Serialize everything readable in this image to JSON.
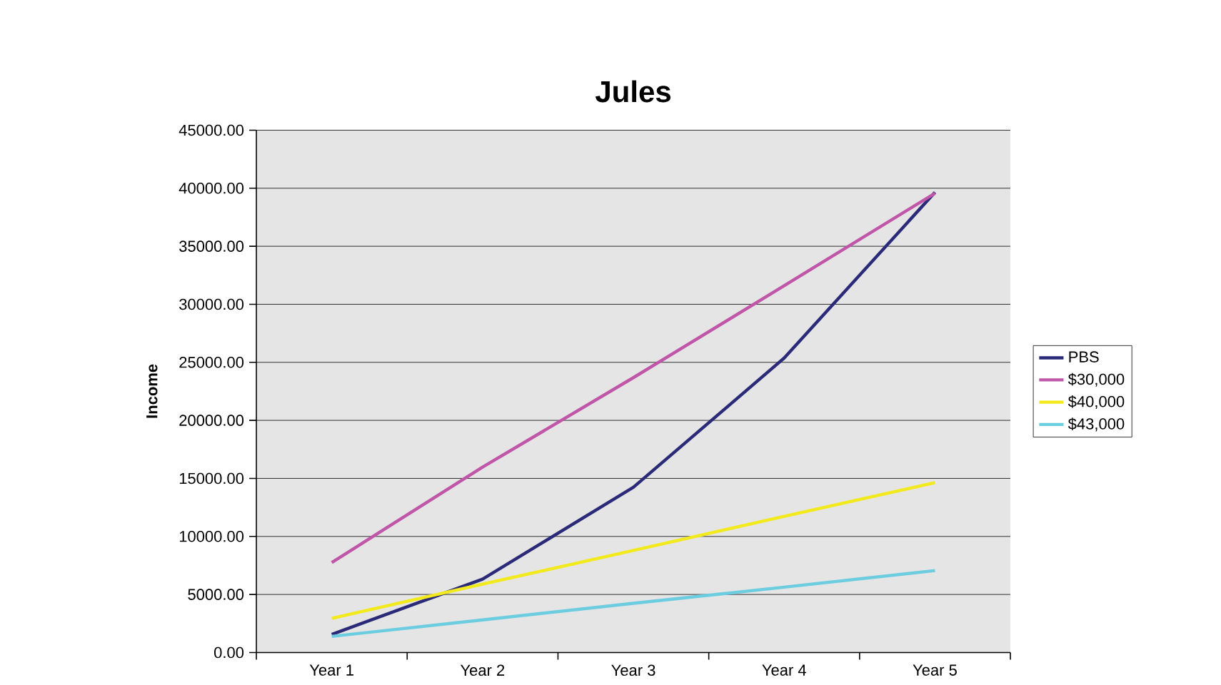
{
  "chart_data": {
    "type": "line",
    "title": "Jules",
    "ylabel": "Income",
    "categories": [
      "Year 1",
      "Year 2",
      "Year 3",
      "Year 4",
      "Year 5"
    ],
    "series": [
      {
        "name": "PBS",
        "color": "#2a2a78",
        "values": [
          1560,
          6320,
          14240,
          25370,
          39650
        ]
      },
      {
        "name": "$30,000",
        "color": "#c056a8",
        "values": [
          7750,
          15970,
          23680,
          31600,
          39570
        ]
      },
      {
        "name": "$40,000",
        "color": "#f2ea1c",
        "values": [
          2940,
          5890,
          8790,
          11730,
          14630
        ]
      },
      {
        "name": "$43,000",
        "color": "#6ccde0",
        "values": [
          1390,
          2810,
          4240,
          5630,
          7060
        ]
      }
    ],
    "ylim": [
      0,
      45000
    ],
    "yticks": [
      {
        "value": 0,
        "label": "0.00"
      },
      {
        "value": 5000,
        "label": "5000.00"
      },
      {
        "value": 10000,
        "label": "10000.00"
      },
      {
        "value": 15000,
        "label": "15000.00"
      },
      {
        "value": 20000,
        "label": "20000.00"
      },
      {
        "value": 25000,
        "label": "25000.00"
      },
      {
        "value": 30000,
        "label": "30000.00"
      },
      {
        "value": 35000,
        "label": "35000.00"
      },
      {
        "value": 40000,
        "label": "40000.00"
      },
      {
        "value": 45000,
        "label": "45000.00"
      }
    ],
    "grid": "y",
    "legend": "right",
    "marker": "none",
    "line_style": "solid"
  }
}
